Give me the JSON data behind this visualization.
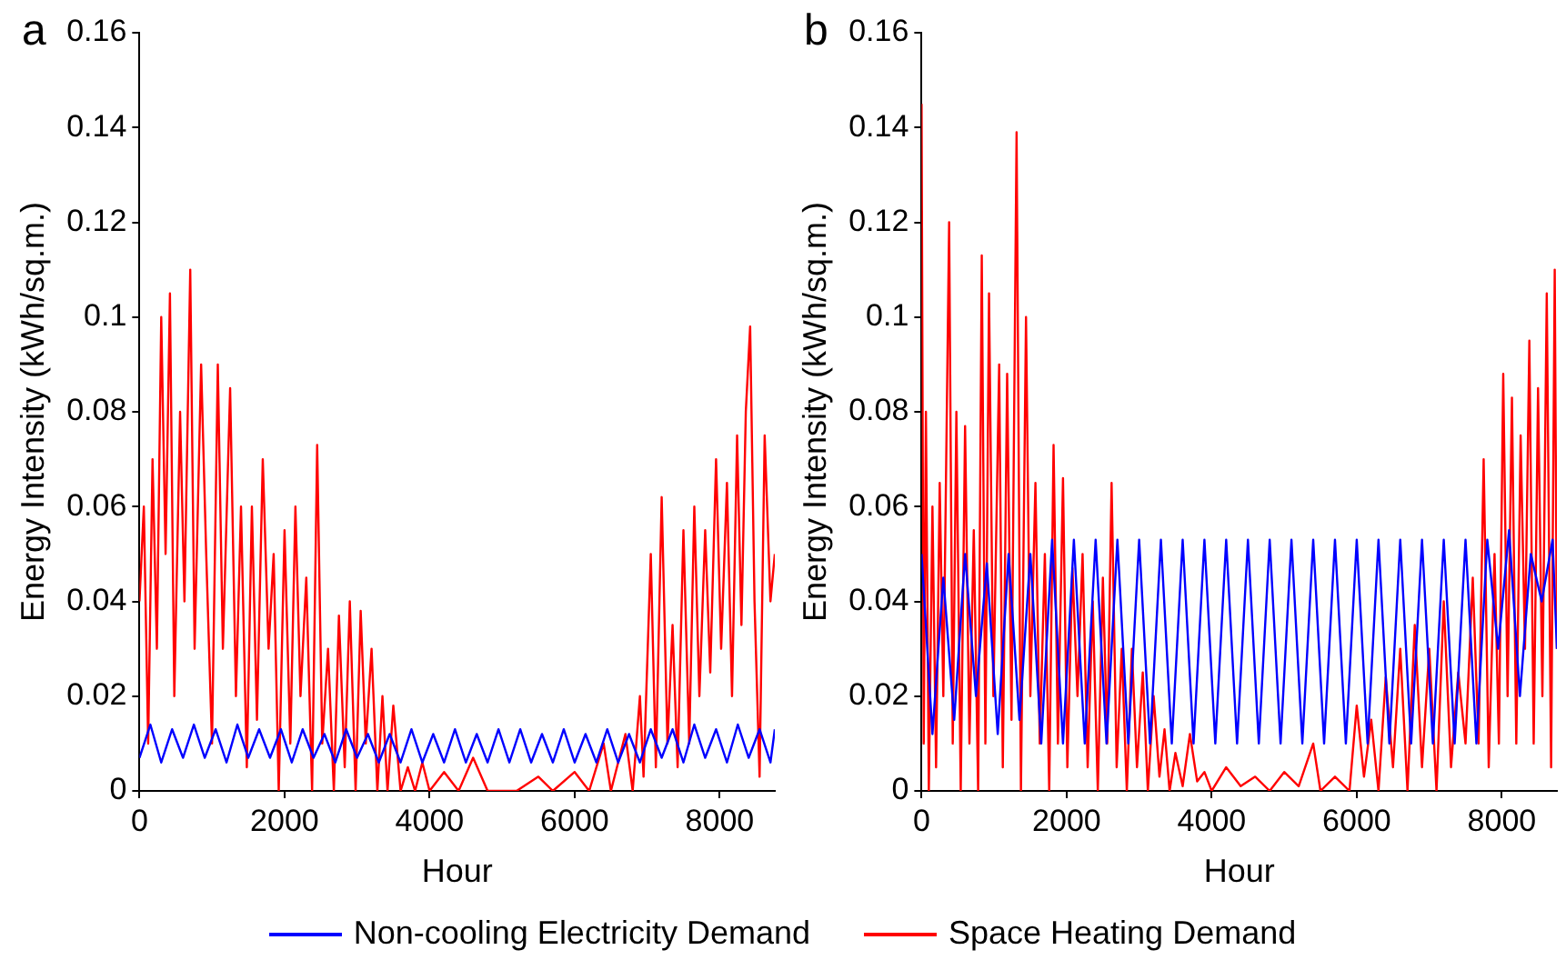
{
  "chart_data": [
    {
      "type": "line",
      "title": "a",
      "xlabel": "Hour",
      "ylabel": "Energy Intensity (kWh/sq.m.)",
      "xlim": [
        0,
        8760
      ],
      "xticks": [
        0,
        2000,
        4000,
        6000,
        8000
      ],
      "ylim": [
        0,
        0.16
      ],
      "yticks": [
        0,
        0.02,
        0.04,
        0.06,
        0.08,
        0.1,
        0.12,
        0.14,
        0.16
      ],
      "grid": false,
      "legend": "bottom",
      "marker": "none",
      "line_style": "solid",
      "series": [
        {
          "name": "Non-cooling Electricity Demand",
          "color": "#0000ff",
          "x": [
            0,
            150,
            300,
            450,
            600,
            750,
            900,
            1050,
            1200,
            1350,
            1500,
            1650,
            1800,
            1950,
            2100,
            2250,
            2400,
            2550,
            2700,
            2850,
            3000,
            3150,
            3300,
            3450,
            3600,
            3750,
            3900,
            4050,
            4200,
            4350,
            4500,
            4650,
            4800,
            4950,
            5100,
            5250,
            5400,
            5550,
            5700,
            5850,
            6000,
            6150,
            6300,
            6450,
            6600,
            6750,
            6900,
            7050,
            7200,
            7350,
            7500,
            7650,
            7800,
            7950,
            8100,
            8250,
            8400,
            8550,
            8700,
            8760
          ],
          "values": [
            0.007,
            0.014,
            0.006,
            0.013,
            0.007,
            0.014,
            0.007,
            0.013,
            0.006,
            0.014,
            0.007,
            0.013,
            0.007,
            0.013,
            0.006,
            0.013,
            0.007,
            0.012,
            0.006,
            0.013,
            0.007,
            0.012,
            0.006,
            0.012,
            0.006,
            0.013,
            0.006,
            0.012,
            0.006,
            0.013,
            0.006,
            0.012,
            0.006,
            0.013,
            0.006,
            0.013,
            0.006,
            0.012,
            0.006,
            0.013,
            0.006,
            0.012,
            0.006,
            0.013,
            0.006,
            0.012,
            0.006,
            0.013,
            0.007,
            0.013,
            0.006,
            0.014,
            0.007,
            0.013,
            0.006,
            0.014,
            0.007,
            0.013,
            0.006,
            0.013
          ]
        },
        {
          "name": "Space Heating Demand",
          "color": "#ff0000",
          "x": [
            0,
            60,
            120,
            180,
            240,
            300,
            360,
            420,
            480,
            560,
            620,
            700,
            760,
            850,
            920,
            1000,
            1080,
            1150,
            1250,
            1330,
            1400,
            1480,
            1550,
            1620,
            1700,
            1780,
            1850,
            1920,
            2000,
            2080,
            2150,
            2220,
            2300,
            2380,
            2450,
            2520,
            2600,
            2680,
            2750,
            2830,
            2900,
            2980,
            3050,
            3120,
            3200,
            3280,
            3350,
            3420,
            3500,
            3600,
            3700,
            3800,
            3900,
            4000,
            4200,
            4400,
            4600,
            4800,
            5200,
            5500,
            5700,
            6000,
            6200,
            6400,
            6500,
            6700,
            6800,
            6900,
            6950,
            7050,
            7120,
            7200,
            7280,
            7350,
            7420,
            7500,
            7580,
            7650,
            7720,
            7800,
            7870,
            7950,
            8020,
            8100,
            8170,
            8240,
            8300,
            8360,
            8420,
            8480,
            8550,
            8620,
            8700,
            8760
          ],
          "values": [
            0.04,
            0.06,
            0.01,
            0.07,
            0.03,
            0.1,
            0.05,
            0.105,
            0.02,
            0.08,
            0.04,
            0.11,
            0.03,
            0.09,
            0.05,
            0.01,
            0.09,
            0.03,
            0.085,
            0.02,
            0.06,
            0.005,
            0.06,
            0.015,
            0.07,
            0.03,
            0.05,
            0,
            0.055,
            0.01,
            0.06,
            0.02,
            0.045,
            0,
            0.073,
            0.01,
            0.03,
            0,
            0.037,
            0.005,
            0.04,
            0,
            0.038,
            0.01,
            0.03,
            0,
            0.02,
            0,
            0.018,
            0,
            0.005,
            0,
            0.006,
            0,
            0.004,
            0,
            0.007,
            0,
            0,
            0.003,
            0,
            0.004,
            0,
            0.01,
            0,
            0.012,
            0,
            0.02,
            0.003,
            0.05,
            0.005,
            0.062,
            0.01,
            0.035,
            0.005,
            0.055,
            0.01,
            0.06,
            0.02,
            0.055,
            0.025,
            0.07,
            0.03,
            0.065,
            0.02,
            0.075,
            0.035,
            0.08,
            0.098,
            0.04,
            0.003,
            0.075,
            0.04,
            0.05
          ]
        }
      ]
    },
    {
      "type": "line",
      "title": "b",
      "xlabel": "Hour",
      "ylabel": "Energy Intensity (kWh/sq.m.)",
      "xlim": [
        0,
        8760
      ],
      "xticks": [
        0,
        2000,
        4000,
        6000,
        8000
      ],
      "ylim": [
        0,
        0.16
      ],
      "yticks": [
        0,
        0.02,
        0.04,
        0.06,
        0.08,
        0.1,
        0.12,
        0.14,
        0.16
      ],
      "grid": false,
      "marker": "none",
      "line_style": "solid",
      "series": [
        {
          "color": "#0000ff",
          "x": [
            0,
            150,
            300,
            450,
            600,
            750,
            900,
            1050,
            1200,
            1350,
            1500,
            1650,
            1800,
            1950,
            2100,
            2250,
            2400,
            2550,
            2700,
            2850,
            3000,
            3150,
            3300,
            3450,
            3600,
            3750,
            3900,
            4050,
            4200,
            4350,
            4500,
            4650,
            4800,
            4950,
            5100,
            5250,
            5400,
            5550,
            5700,
            5850,
            6000,
            6150,
            6300,
            6450,
            6600,
            6750,
            6900,
            7050,
            7200,
            7350,
            7500,
            7650,
            7800,
            7950,
            8100,
            8250,
            8400,
            8550,
            8700,
            8760
          ],
          "values": [
            0.05,
            0.012,
            0.045,
            0.015,
            0.05,
            0.02,
            0.048,
            0.012,
            0.05,
            0.015,
            0.05,
            0.01,
            0.053,
            0.01,
            0.053,
            0.01,
            0.053,
            0.01,
            0.053,
            0.01,
            0.053,
            0.01,
            0.053,
            0.01,
            0.053,
            0.01,
            0.053,
            0.01,
            0.053,
            0.01,
            0.053,
            0.01,
            0.053,
            0.01,
            0.053,
            0.01,
            0.053,
            0.01,
            0.053,
            0.01,
            0.053,
            0.01,
            0.053,
            0.01,
            0.053,
            0.01,
            0.053,
            0.01,
            0.053,
            0.01,
            0.053,
            0.01,
            0.053,
            0.03,
            0.055,
            0.02,
            0.05,
            0.04,
            0.053,
            0.03
          ]
        },
        {
          "color": "#ff0000",
          "x": [
            0,
            30,
            60,
            100,
            150,
            200,
            250,
            300,
            380,
            430,
            480,
            540,
            600,
            660,
            720,
            780,
            830,
            880,
            930,
            990,
            1070,
            1120,
            1180,
            1240,
            1310,
            1370,
            1440,
            1500,
            1570,
            1630,
            1700,
            1760,
            1820,
            1880,
            1950,
            2010,
            2080,
            2150,
            2220,
            2290,
            2360,
            2430,
            2500,
            2560,
            2620,
            2690,
            2760,
            2830,
            2900,
            2970,
            3050,
            3120,
            3200,
            3280,
            3350,
            3420,
            3500,
            3600,
            3700,
            3800,
            3900,
            4000,
            4200,
            4400,
            4600,
            4800,
            5000,
            5200,
            5400,
            5500,
            5700,
            5900,
            6000,
            6100,
            6200,
            6300,
            6400,
            6500,
            6600,
            6700,
            6800,
            6900,
            7000,
            7100,
            7200,
            7300,
            7400,
            7500,
            7600,
            7680,
            7750,
            7820,
            7900,
            7960,
            8020,
            8080,
            8140,
            8200,
            8260,
            8320,
            8380,
            8440,
            8500,
            8560,
            8620,
            8680,
            8730,
            8760
          ],
          "values": [
            0.145,
            0.01,
            0.08,
            0,
            0.06,
            0.005,
            0.065,
            0.02,
            0.12,
            0.01,
            0.08,
            0,
            0.077,
            0.01,
            0.055,
            0,
            0.113,
            0.01,
            0.105,
            0.02,
            0.09,
            0.005,
            0.088,
            0.015,
            0.139,
            0,
            0.1,
            0.02,
            0.065,
            0.01,
            0.05,
            0,
            0.073,
            0.01,
            0.066,
            0.005,
            0.047,
            0.02,
            0.05,
            0.005,
            0.04,
            0,
            0.045,
            0.01,
            0.065,
            0.005,
            0.03,
            0,
            0.03,
            0.005,
            0.025,
            0,
            0.02,
            0.003,
            0.013,
            0,
            0.008,
            0.001,
            0.012,
            0.002,
            0.004,
            0,
            0.005,
            0.001,
            0.003,
            0,
            0.004,
            0.001,
            0.01,
            0,
            0.003,
            0,
            0.018,
            0.003,
            0.015,
            0,
            0.024,
            0.005,
            0.03,
            0,
            0.035,
            0.005,
            0.03,
            0,
            0.04,
            0.005,
            0.025,
            0.01,
            0.045,
            0.01,
            0.07,
            0.005,
            0.05,
            0.01,
            0.088,
            0.02,
            0.083,
            0.01,
            0.075,
            0.03,
            0.095,
            0.01,
            0.085,
            0.02,
            0.105,
            0.005,
            0.11,
            0.03
          ]
        }
      ]
    }
  ]
}
